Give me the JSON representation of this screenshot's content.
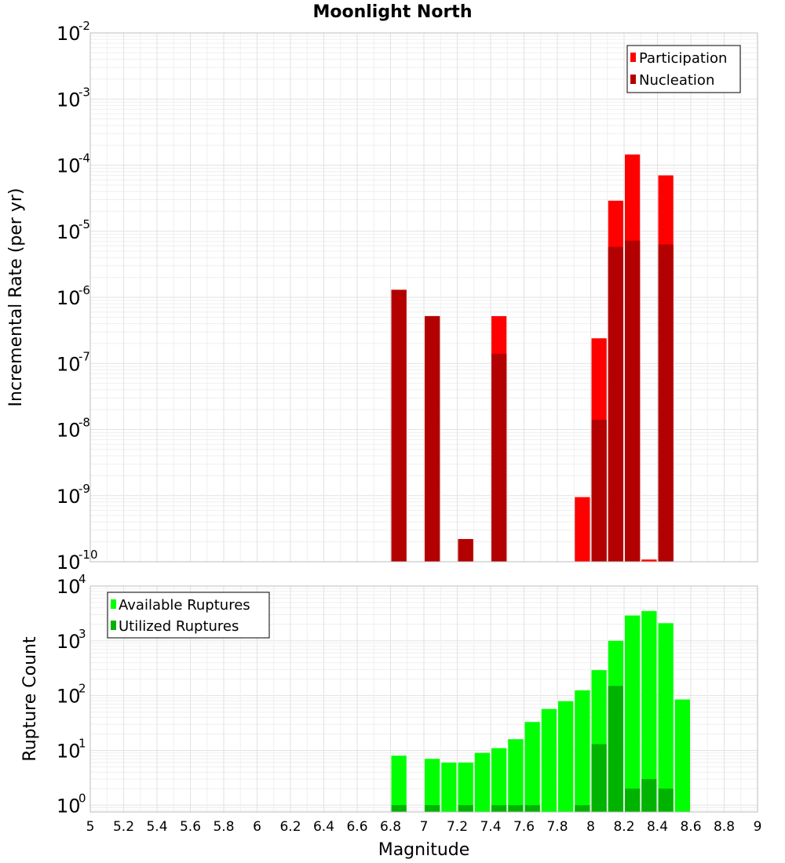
{
  "chart_data": [
    {
      "type": "bar",
      "title": "Moonlight North",
      "xlabel": "",
      "ylabel": "Incremental Rate (per yr)",
      "yscale": "log",
      "ylim": [
        1e-10,
        0.01
      ],
      "xlim": [
        5,
        9
      ],
      "bar_width": 0.1,
      "legend_position": "top-right",
      "series": [
        {
          "name": "Participation",
          "color": "#ff0000",
          "points": [
            {
              "x": 6.85,
              "y": 1.3e-06
            },
            {
              "x": 7.05,
              "y": 5.2e-07
            },
            {
              "x": 7.25,
              "y": 2.2e-10
            },
            {
              "x": 7.45,
              "y": 5.2e-07
            },
            {
              "x": 7.95,
              "y": 9.5e-10
            },
            {
              "x": 8.05,
              "y": 2.4e-07
            },
            {
              "x": 8.15,
              "y": 2.9e-05
            },
            {
              "x": 8.25,
              "y": 0.000145
            },
            {
              "x": 8.35,
              "y": 1.08e-10
            },
            {
              "x": 8.45,
              "y": 7e-05
            }
          ]
        },
        {
          "name": "Nucleation",
          "color": "#b30000",
          "points": [
            {
              "x": 6.85,
              "y": 1.3e-06
            },
            {
              "x": 7.05,
              "y": 5.2e-07
            },
            {
              "x": 7.25,
              "y": 2.2e-10
            },
            {
              "x": 7.45,
              "y": 1.4e-07
            },
            {
              "x": 8.05,
              "y": 1.4e-08
            },
            {
              "x": 8.15,
              "y": 5.8e-06
            },
            {
              "x": 8.25,
              "y": 7.2e-06
            },
            {
              "x": 8.45,
              "y": 6.3e-06
            }
          ]
        }
      ]
    },
    {
      "type": "bar",
      "title": "",
      "xlabel": "Magnitude",
      "ylabel": "Rupture Count",
      "yscale": "log",
      "ylim": [
        0.75,
        10000
      ],
      "xlim": [
        5,
        9
      ],
      "bar_width": 0.1,
      "legend_position": "top-left",
      "series": [
        {
          "name": "Available Ruptures",
          "color": "#00ff00",
          "points": [
            {
              "x": 6.85,
              "y": 8
            },
            {
              "x": 7.05,
              "y": 7
            },
            {
              "x": 7.15,
              "y": 6
            },
            {
              "x": 7.25,
              "y": 6
            },
            {
              "x": 7.35,
              "y": 9
            },
            {
              "x": 7.45,
              "y": 11
            },
            {
              "x": 7.55,
              "y": 16
            },
            {
              "x": 7.65,
              "y": 33
            },
            {
              "x": 7.75,
              "y": 57
            },
            {
              "x": 7.85,
              "y": 79
            },
            {
              "x": 7.95,
              "y": 125
            },
            {
              "x": 8.05,
              "y": 292
            },
            {
              "x": 8.15,
              "y": 1000
            },
            {
              "x": 8.25,
              "y": 2900
            },
            {
              "x": 8.35,
              "y": 3500
            },
            {
              "x": 8.45,
              "y": 2100
            },
            {
              "x": 8.55,
              "y": 85
            }
          ]
        },
        {
          "name": "Utilized Ruptures",
          "color": "#00b300",
          "points": [
            {
              "x": 6.85,
              "y": 1
            },
            {
              "x": 7.05,
              "y": 1
            },
            {
              "x": 7.25,
              "y": 1
            },
            {
              "x": 7.45,
              "y": 1
            },
            {
              "x": 7.55,
              "y": 1
            },
            {
              "x": 7.65,
              "y": 1
            },
            {
              "x": 7.95,
              "y": 1
            },
            {
              "x": 8.05,
              "y": 13
            },
            {
              "x": 8.15,
              "y": 150
            },
            {
              "x": 8.25,
              "y": 2
            },
            {
              "x": 8.35,
              "y": 3
            },
            {
              "x": 8.45,
              "y": 2
            }
          ]
        }
      ]
    }
  ],
  "xticks": [
    "5",
    "5.2",
    "5.4",
    "5.6",
    "5.8",
    "6",
    "6.2",
    "6.4",
    "6.6",
    "6.8",
    "7",
    "7.2",
    "7.4",
    "7.6",
    "7.8",
    "8",
    "8.2",
    "8.4",
    "8.6",
    "8.8",
    "9"
  ],
  "yticks_top": [
    {
      "base": "10",
      "exp": "-10"
    },
    {
      "base": "10",
      "exp": "-9"
    },
    {
      "base": "10",
      "exp": "-8"
    },
    {
      "base": "10",
      "exp": "-7"
    },
    {
      "base": "10",
      "exp": "-6"
    },
    {
      "base": "10",
      "exp": "-5"
    },
    {
      "base": "10",
      "exp": "-4"
    },
    {
      "base": "10",
      "exp": "-3"
    },
    {
      "base": "10",
      "exp": "-2"
    }
  ],
  "yticks_bottom": [
    {
      "base": "10",
      "exp": "0"
    },
    {
      "base": "10",
      "exp": "1"
    },
    {
      "base": "10",
      "exp": "2"
    },
    {
      "base": "10",
      "exp": "3"
    },
    {
      "base": "10",
      "exp": "4"
    }
  ]
}
